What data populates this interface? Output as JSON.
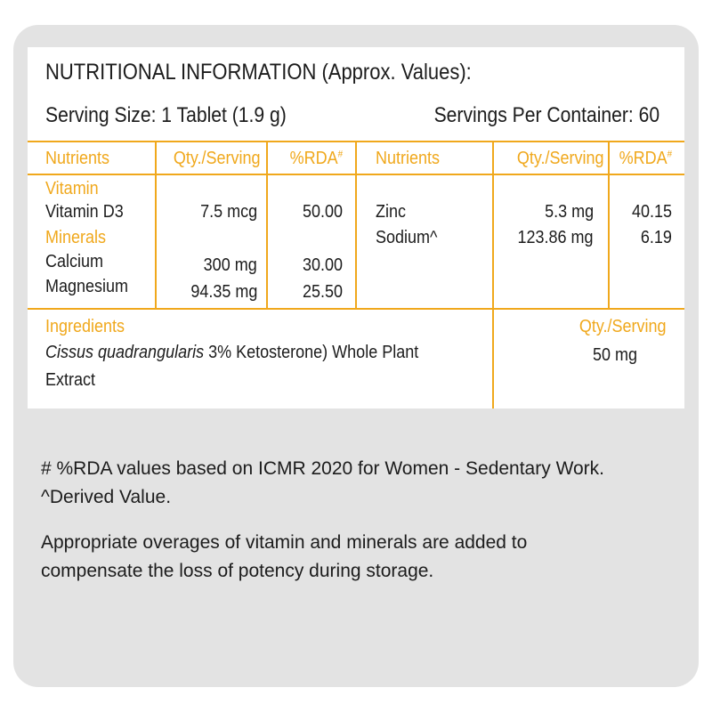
{
  "header": {
    "title": "NUTRITIONAL INFORMATION (Approx. Values):",
    "serving_size": "Serving Size: 1 Tablet (1.9 g)",
    "servings_per_container": "Servings Per Container: 60"
  },
  "table": {
    "columns_left": {
      "nutrients": "Nutrients",
      "qty": "Qty./Serving",
      "rda": "%RDA",
      "rda_mark": "#"
    },
    "columns_right": {
      "nutrients": "Nutrients",
      "qty": "Qty./Serving",
      "rda": "%RDA",
      "rda_mark": "#"
    },
    "group_vitamin": "Vitamin",
    "group_minerals": "Minerals",
    "left_rows": [
      {
        "name": "Vitamin D3",
        "qty": "7.5 mcg",
        "rda": "50.00"
      },
      {
        "name": "Calcium",
        "qty": "300 mg",
        "rda": "30.00"
      },
      {
        "name": "Magnesium",
        "qty": "94.35 mg",
        "rda": "25.50"
      }
    ],
    "right_rows": [
      {
        "name": "Zinc",
        "qty": "5.3 mg",
        "rda": "40.15"
      },
      {
        "name": "Sodium^",
        "qty": "123.86 mg",
        "rda": "6.19"
      }
    ]
  },
  "ingredients": {
    "label": "Ingredients",
    "qty_label": "Qty./Serving",
    "name_italic": "Cissus quadrangularis",
    "name_rest": " 3% Ketosterone) Whole Plant",
    "name_line2": "Extract",
    "qty": "50 mg"
  },
  "footnotes": {
    "rda_note": "# %RDA values based on ICMR 2020 for Women - Sedentary Work.",
    "derived": "^Derived Value.",
    "overages_line1": "Appropriate overages of vitamin and minerals are added to",
    "overages_line2": "compensate the loss of potency during storage."
  },
  "colors": {
    "accent": "#f0a81c",
    "panel": "#e3e3e3",
    "text": "#1c1c1c"
  }
}
